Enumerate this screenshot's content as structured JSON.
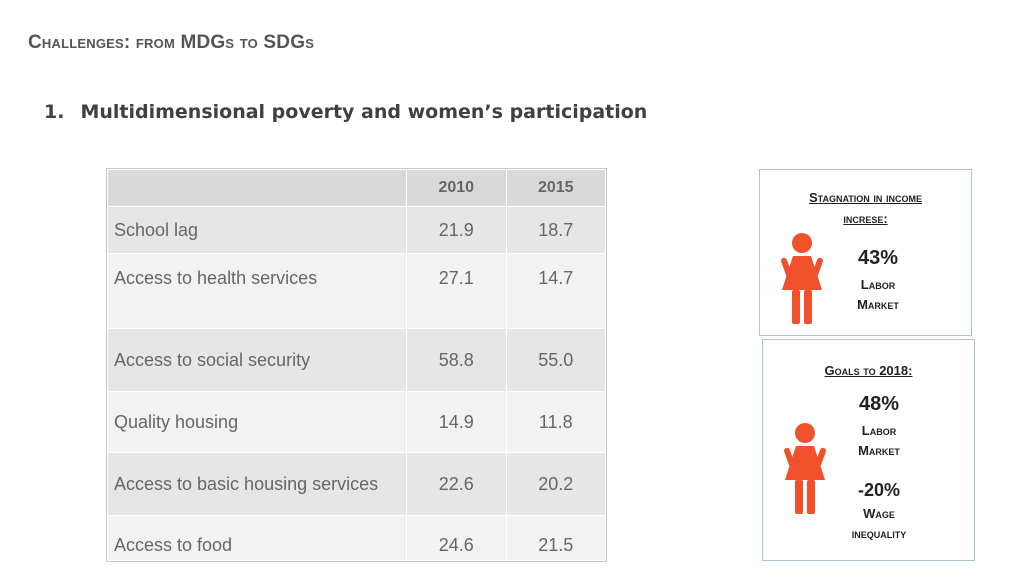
{
  "header": {
    "title": "Challenges: from MDGs to SDGs",
    "section_number": "1.",
    "section_title": "Multidimensional poverty and women’s participation"
  },
  "table": {
    "columns": [
      "",
      "2010",
      "2015"
    ],
    "rows": [
      {
        "label": "School lag",
        "v2010": "21.9",
        "v2015": "18.7"
      },
      {
        "label": "Access to health services",
        "v2010": "27.1",
        "v2015": "14.7"
      },
      {
        "label": "Access to social security",
        "v2010": "58.8",
        "v2015": "55.0"
      },
      {
        "label": "Quality housing",
        "v2010": "14.9",
        "v2015": "11.8"
      },
      {
        "label": "Access to basic housing services",
        "v2010": "22.6",
        "v2015": "20.2"
      },
      {
        "label": "Access to food",
        "v2010": "24.6",
        "v2015": "21.5"
      }
    ]
  },
  "box1": {
    "heading_line1": "Stagnation in income",
    "heading_line2": "increse:",
    "stat": "43%",
    "stat_label_line1": "Labor",
    "stat_label_line2": "Market",
    "icon": "woman-icon",
    "icon_color": "#f0502a"
  },
  "box2": {
    "heading": "Goals to  2018:",
    "stat1": "48%",
    "stat1_label_line1": "Labor",
    "stat1_label_line2": "Market",
    "stat2": "-20%",
    "stat2_label_line1": "Wage",
    "stat2_label_line2": "inequality",
    "icon": "woman-icon",
    "icon_color": "#f0502a"
  }
}
